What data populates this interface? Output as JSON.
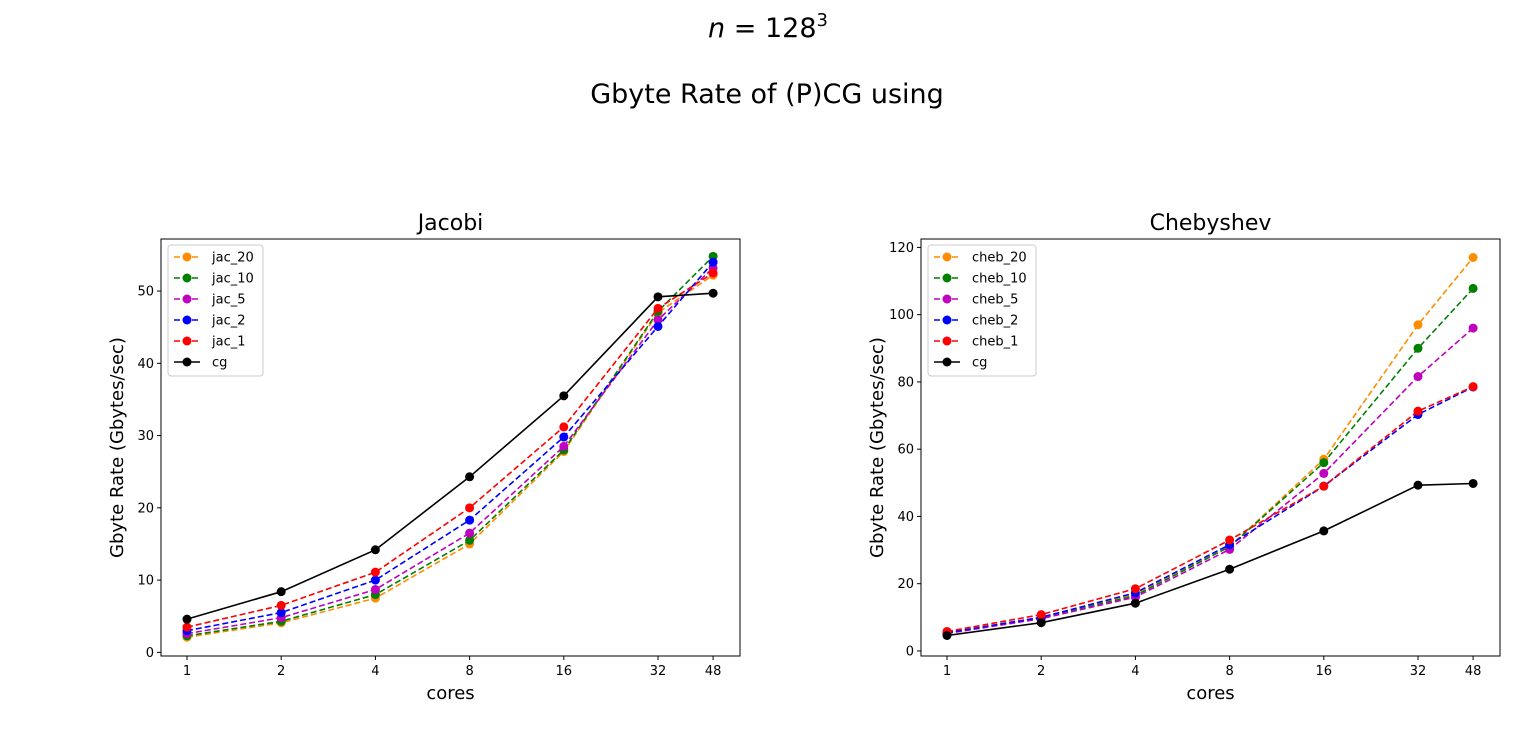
{
  "figure": {
    "suptitle_math": {
      "var": "n",
      "eq": " = 128",
      "sup": "3"
    },
    "subtitle": "Gbyte Rate of (P)CG using"
  },
  "chart_data": [
    {
      "type": "line",
      "title": "Jacobi",
      "xlabel": "cores",
      "ylabel": "Gbyte Rate (Gbytes/sec)",
      "x_scale": "log2",
      "x": [
        1,
        2,
        4,
        8,
        16,
        32,
        48
      ],
      "x_tick_labels": [
        "1",
        "2",
        "4",
        "8",
        "16",
        "32",
        "48"
      ],
      "ylim": [
        -0.5,
        57.2
      ],
      "yticks": [
        0,
        10,
        20,
        30,
        40,
        50
      ],
      "legend_position": "upper-left",
      "grid": false,
      "series": [
        {
          "name": "jac_20",
          "color": "#ff8c00",
          "style": "dashed",
          "values": [
            2.1,
            4.1,
            7.5,
            15.0,
            27.8,
            47.0,
            52.2
          ]
        },
        {
          "name": "jac_10",
          "color": "#008000",
          "style": "dashed",
          "values": [
            2.3,
            4.3,
            8.0,
            15.5,
            28.0,
            47.2,
            54.8
          ]
        },
        {
          "name": "jac_5",
          "color": "#bf00bf",
          "style": "dashed",
          "values": [
            2.6,
            4.8,
            8.7,
            16.5,
            28.5,
            46.0,
            53.2
          ]
        },
        {
          "name": "jac_2",
          "color": "#0000ff",
          "style": "dashed",
          "values": [
            3.0,
            5.5,
            10.0,
            18.3,
            29.8,
            45.1,
            54.0
          ]
        },
        {
          "name": "jac_1",
          "color": "#ff0000",
          "style": "dashed",
          "values": [
            3.5,
            6.5,
            11.1,
            20.0,
            31.2,
            47.6,
            52.5
          ]
        },
        {
          "name": "cg",
          "color": "#000000",
          "style": "solid",
          "values": [
            4.6,
            8.4,
            14.2,
            24.3,
            35.5,
            49.2,
            49.7
          ]
        }
      ]
    },
    {
      "type": "line",
      "title": "Chebyshev",
      "xlabel": "cores",
      "ylabel": "Gbyte Rate (Gbytes/sec)",
      "x_scale": "log2",
      "x": [
        1,
        2,
        4,
        8,
        16,
        32,
        48
      ],
      "x_tick_labels": [
        "1",
        "2",
        "4",
        "8",
        "16",
        "32",
        "48"
      ],
      "ylim": [
        -1.5,
        122.5
      ],
      "yticks": [
        0,
        20,
        40,
        60,
        80,
        100,
        120
      ],
      "legend_position": "upper-left",
      "grid": false,
      "series": [
        {
          "name": "cheb_20",
          "color": "#ff8c00",
          "style": "dashed",
          "values": [
            5.5,
            10.0,
            17.0,
            31.0,
            57.0,
            97.0,
            117.0
          ]
        },
        {
          "name": "cheb_10",
          "color": "#008000",
          "style": "dashed",
          "values": [
            5.3,
            9.8,
            16.5,
            31.0,
            56.0,
            90.0,
            107.8
          ]
        },
        {
          "name": "cheb_5",
          "color": "#bf00bf",
          "style": "dashed",
          "values": [
            5.2,
            9.6,
            16.0,
            30.2,
            52.8,
            81.6,
            96.0
          ]
        },
        {
          "name": "cheb_2",
          "color": "#0000ff",
          "style": "dashed",
          "values": [
            5.4,
            10.0,
            17.3,
            31.6,
            49.0,
            70.3,
            78.5
          ]
        },
        {
          "name": "cheb_1",
          "color": "#ff0000",
          "style": "dashed",
          "values": [
            5.8,
            10.8,
            18.5,
            33.0,
            49.0,
            71.3,
            78.6
          ]
        },
        {
          "name": "cg",
          "color": "#000000",
          "style": "solid",
          "values": [
            4.6,
            8.4,
            14.2,
            24.3,
            35.7,
            49.3,
            49.8
          ]
        }
      ]
    }
  ]
}
